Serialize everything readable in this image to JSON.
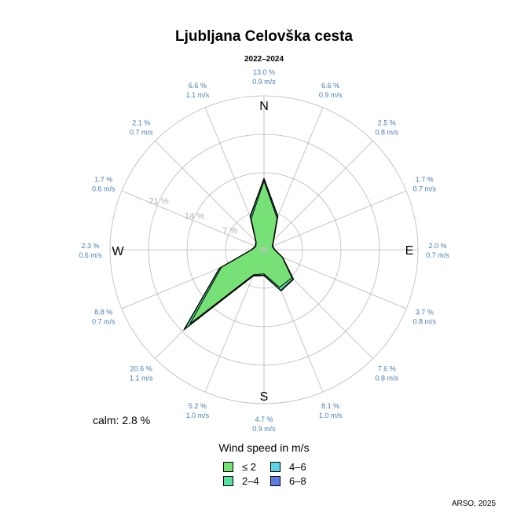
{
  "chart_data": {
    "type": "wind-rose",
    "title": "Ljubljana Celovška cesta",
    "subtitle": "2022–2024",
    "calm_label": "calm: 2.8 %",
    "credit": "ARSO, 2025",
    "radial_max": 28,
    "rings": [
      7,
      14,
      21,
      28
    ],
    "ring_labels": [
      "7 %",
      "14 %",
      "21 %"
    ],
    "compass": [
      "N",
      "E",
      "S",
      "W"
    ],
    "legend_title": "Wind speed in m/s",
    "legend": [
      {
        "label": "≤ 2",
        "color": "#77e077"
      },
      {
        "label": "4–6",
        "color": "#5fd4e8"
      },
      {
        "label": "2–4",
        "color": "#55e0a0"
      },
      {
        "label": "6–8",
        "color": "#5f7de0"
      }
    ],
    "directions": [
      {
        "dir": "N",
        "freq": "13.0 %",
        "speed": "0.9 m/s"
      },
      {
        "dir": "NNE",
        "freq": "6.6 %",
        "speed": "0.9 m/s"
      },
      {
        "dir": "NE",
        "freq": "2.5 %",
        "speed": "0.8 m/s"
      },
      {
        "dir": "ENE",
        "freq": "1.7 %",
        "speed": "0.7 m/s"
      },
      {
        "dir": "E",
        "freq": "2.0 %",
        "speed": "0.7 m/s"
      },
      {
        "dir": "ESE",
        "freq": "3.7 %",
        "speed": "0.8 m/s"
      },
      {
        "dir": "SE",
        "freq": "7.6 %",
        "speed": "0.8 m/s"
      },
      {
        "dir": "SSE",
        "freq": "8.1 %",
        "speed": "1.0 m/s"
      },
      {
        "dir": "S",
        "freq": "4.7 %",
        "speed": "0.9 m/s"
      },
      {
        "dir": "SSW",
        "freq": "5.2 %",
        "speed": "1.0 m/s"
      },
      {
        "dir": "SW",
        "freq": "20.6 %",
        "speed": "1.1 m/s"
      },
      {
        "dir": "WSW",
        "freq": "8.8 %",
        "speed": "0.7 m/s"
      },
      {
        "dir": "W",
        "freq": "2.3 %",
        "speed": "0.6 m/s"
      },
      {
        "dir": "WNW",
        "freq": "1.7 %",
        "speed": "0.6 m/s"
      },
      {
        "dir": "NW",
        "freq": "2.1 %",
        "speed": "0.7 m/s"
      },
      {
        "dir": "NNW",
        "freq": "6.6 %",
        "speed": "1.1 m/s"
      }
    ],
    "series": [
      {
        "name": "≤ 2",
        "values": [
          12.5,
          6.2,
          2.4,
          1.6,
          1.9,
          3.6,
          7.2,
          7.4,
          4.4,
          4.9,
          19.0,
          8.4,
          2.2,
          1.6,
          2.0,
          6.1
        ]
      },
      {
        "name": "2–4",
        "values": [
          0.4,
          0.3,
          0.1,
          0.1,
          0.1,
          0.1,
          0.3,
          0.6,
          0.2,
          0.2,
          1.4,
          0.3,
          0.1,
          0.1,
          0.1,
          0.4
        ]
      },
      {
        "name": "4–6",
        "values": [
          0.1,
          0.1,
          0.0,
          0.0,
          0.0,
          0.0,
          0.1,
          0.1,
          0.1,
          0.1,
          0.2,
          0.1,
          0.0,
          0.0,
          0.0,
          0.1
        ]
      },
      {
        "name": "6–8",
        "values": [
          0.0,
          0.0,
          0.0,
          0.0,
          0.0,
          0.0,
          0.0,
          0.0,
          0.0,
          0.0,
          0.0,
          0.0,
          0.0,
          0.0,
          0.0,
          0.0
        ]
      }
    ]
  }
}
